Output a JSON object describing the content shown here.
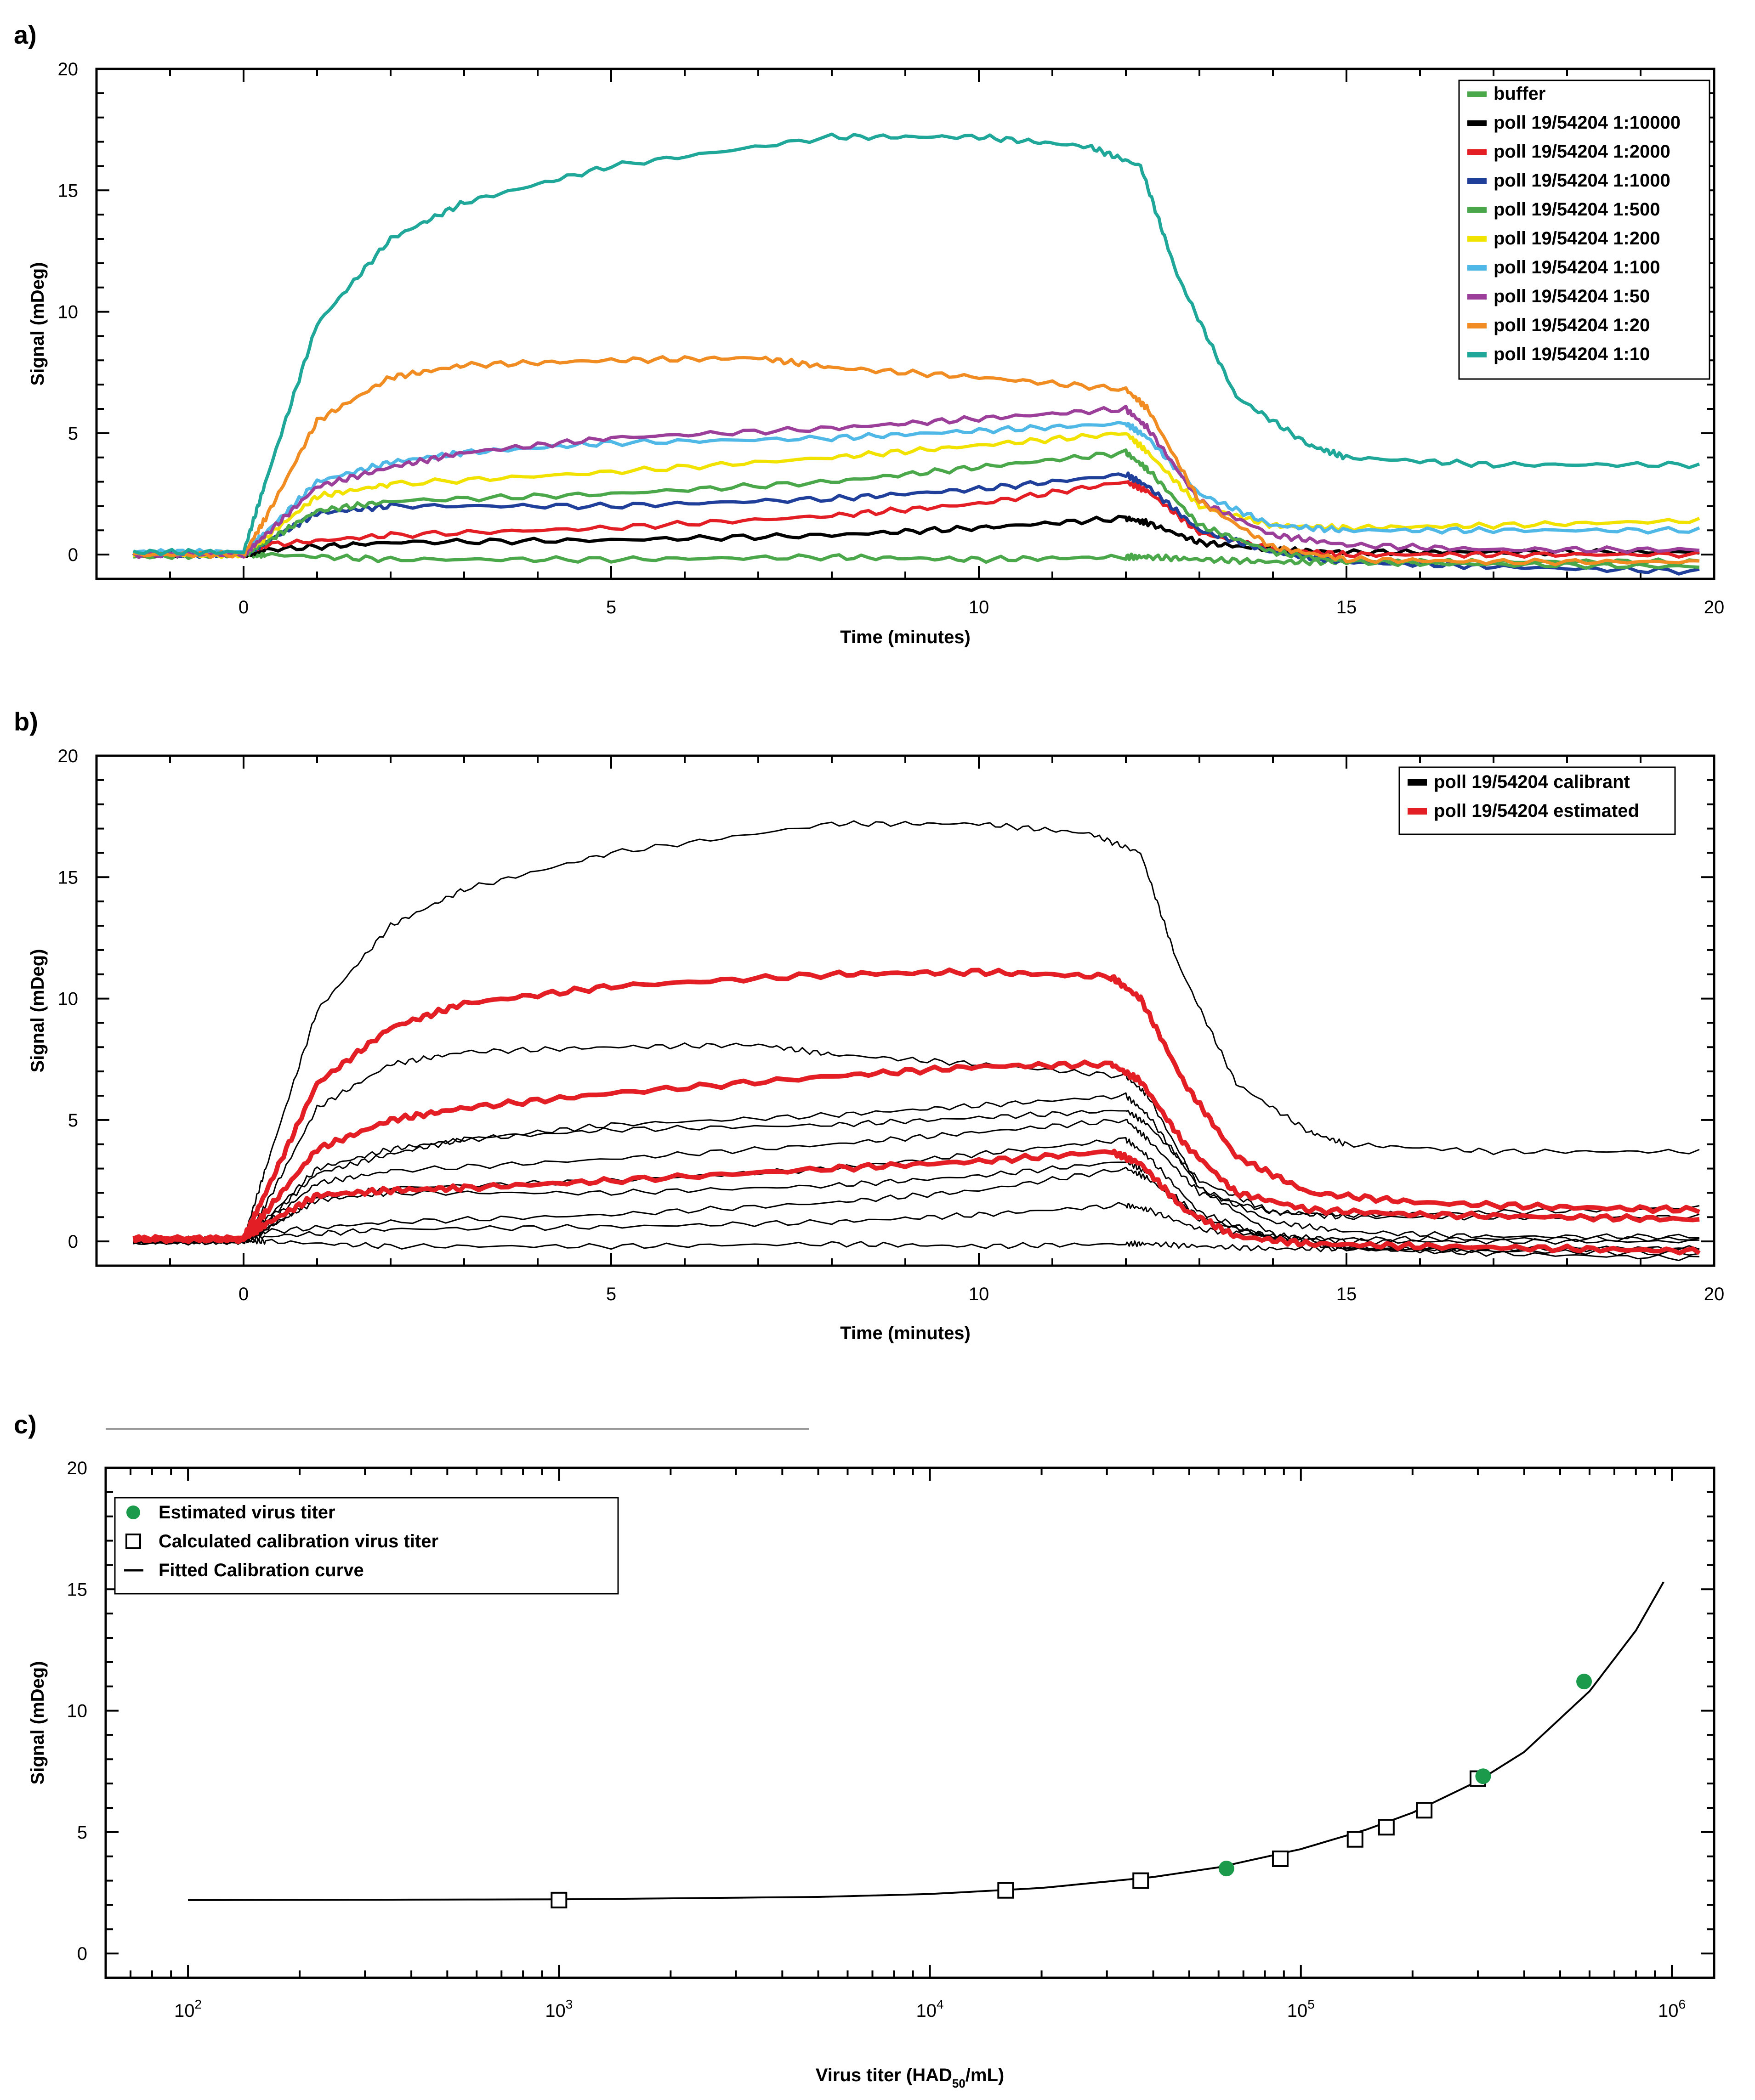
{
  "panels": [
    {
      "label": "a)"
    },
    {
      "label": "b)"
    },
    {
      "label": "c)"
    }
  ],
  "chart_data": [
    {
      "type": "line",
      "panel": "a)",
      "xlabel": "Time (minutes)",
      "ylabel": "Signal (mDeg)",
      "xlim": [
        -2,
        20
      ],
      "ylim": [
        -1,
        20
      ],
      "xticks": [
        0,
        5,
        10,
        15,
        20
      ],
      "yticks": [
        0,
        5,
        10,
        15,
        20
      ],
      "legend_position": "top-right",
      "series": [
        {
          "name": "buffer",
          "color": "#4aa84a",
          "x": [
            -1.5,
            0,
            0.3,
            2,
            5,
            8,
            10,
            12,
            12.3,
            13,
            14,
            15,
            17,
            19.8
          ],
          "y": [
            -0.1,
            0,
            0,
            -0.2,
            -0.2,
            -0.1,
            -0.2,
            -0.1,
            -0.1,
            -0.2,
            -0.3,
            -0.3,
            -0.3,
            -0.3
          ]
        },
        {
          "name": "poll 19/54204 1:10000",
          "color": "#000000",
          "x": [
            -1.5,
            0,
            0.3,
            2,
            5,
            8,
            10,
            12,
            12.3,
            13,
            14,
            15,
            17,
            19.8
          ],
          "y": [
            0,
            0,
            0.2,
            0.5,
            0.6,
            0.8,
            1.1,
            1.5,
            1.3,
            0.5,
            0.2,
            0.1,
            0.1,
            0.1
          ]
        },
        {
          "name": "poll 19/54204 1:2000",
          "color": "#e31e24",
          "x": [
            -1.5,
            0,
            0.3,
            2,
            5,
            8,
            10,
            12,
            12.3,
            13,
            14,
            15,
            17,
            19.8
          ],
          "y": [
            0,
            0,
            0.4,
            0.8,
            1.1,
            1.6,
            2.1,
            3.0,
            2.6,
            0.9,
            0.2,
            0,
            0,
            0
          ]
        },
        {
          "name": "poll 19/54204 1:1000",
          "color": "#1f3f9a",
          "x": [
            -1.5,
            0,
            0.3,
            1,
            2,
            5,
            8,
            10,
            12,
            12.3,
            13,
            14,
            15,
            17,
            19.8
          ],
          "y": [
            0,
            0,
            0.5,
            1.7,
            2.0,
            2.0,
            2.3,
            2.7,
            3.3,
            2.8,
            1.0,
            0.1,
            -0.3,
            -0.5,
            -0.7
          ]
        },
        {
          "name": "poll 19/54204 1:500",
          "color": "#4aa84a",
          "x": [
            -1.5,
            0,
            0.3,
            1,
            2,
            5,
            8,
            10,
            12,
            12.3,
            13,
            14,
            15,
            17,
            19.8
          ],
          "y": [
            0,
            0,
            0.5,
            1.8,
            2.2,
            2.5,
            3.0,
            3.6,
            4.2,
            3.5,
            1.2,
            0.1,
            -0.3,
            -0.4,
            -0.5
          ]
        },
        {
          "name": "poll 19/54204 1:200",
          "color": "#f2e200",
          "x": [
            -1.5,
            0,
            0.3,
            1,
            2,
            5,
            8,
            10,
            12,
            12.3,
            13,
            14,
            15,
            17,
            19.8
          ],
          "y": [
            0,
            0,
            0.7,
            2.4,
            2.9,
            3.4,
            4.0,
            4.5,
            5.0,
            4.2,
            2.0,
            1.2,
            1.1,
            1.2,
            1.4
          ]
        },
        {
          "name": "poll 19/54204 1:100",
          "color": "#4fb8e6",
          "x": [
            -1.5,
            0,
            0.3,
            1,
            2,
            3,
            5,
            8,
            10,
            12,
            12.3,
            13,
            14,
            15,
            17,
            19.8
          ],
          "y": [
            0.1,
            0.1,
            0.9,
            3.0,
            3.8,
            4.2,
            4.6,
            4.8,
            5.1,
            5.4,
            4.8,
            2.5,
            1.2,
            1.0,
            1.0,
            1.0
          ]
        },
        {
          "name": "poll 19/54204 1:50",
          "color": "#9b3f9b",
          "x": [
            -1.5,
            0,
            0.3,
            1,
            2,
            3,
            5,
            8,
            10,
            12,
            12.3,
            13,
            14,
            15,
            17,
            19.8
          ],
          "y": [
            0,
            0,
            0.8,
            2.8,
            3.6,
            4.2,
            4.8,
            5.2,
            5.6,
            6.0,
            5.2,
            2.2,
            0.8,
            0.4,
            0.2,
            0.2
          ]
        },
        {
          "name": "poll 19/54204 1:20",
          "color": "#f08c21",
          "x": [
            -1.5,
            0,
            0.3,
            1,
            2,
            3,
            5,
            7,
            8,
            10,
            12,
            12.3,
            13,
            14,
            15,
            17,
            19.8
          ],
          "y": [
            0,
            0,
            1.5,
            5.5,
            7.3,
            7.8,
            8.0,
            8.1,
            7.7,
            7.3,
            6.8,
            6.0,
            2.2,
            0.3,
            -0.2,
            -0.3,
            -0.3
          ]
        },
        {
          "name": "poll 19/54204 1:10",
          "color": "#1fa89a",
          "x": [
            -1.5,
            0,
            0.3,
            1,
            2,
            3,
            5,
            8,
            10,
            11.5,
            12.2,
            12.7,
            13.5,
            14.5,
            15,
            17,
            19.8
          ],
          "y": [
            0.1,
            0.1,
            3.0,
            9.5,
            13.0,
            14.5,
            16.0,
            17.2,
            17.2,
            16.8,
            16.0,
            11.5,
            6.5,
            4.5,
            4.0,
            3.7,
            3.7
          ]
        }
      ]
    },
    {
      "type": "line",
      "panel": "b)",
      "xlabel": "Time (minutes)",
      "ylabel": "Signal (mDeg)",
      "xlim": [
        -2,
        20
      ],
      "ylim": [
        -1,
        20
      ],
      "xticks": [
        0,
        5,
        10,
        15,
        20
      ],
      "yticks": [
        0,
        5,
        10,
        15,
        20
      ],
      "legend_position": "top-right",
      "legend": [
        {
          "name": "poll 19/54204 calibrant",
          "color": "#000000"
        },
        {
          "name": "poll 19/54204 estimated",
          "color": "#e31e24"
        }
      ],
      "series": [
        {
          "group": "calibrant",
          "color": "#000000",
          "x": [
            -1.5,
            0,
            0.3,
            2,
            5,
            8,
            10,
            12,
            12.3,
            13,
            14,
            15,
            17,
            19.8
          ],
          "y": [
            -0.1,
            0,
            0,
            -0.2,
            -0.2,
            -0.1,
            -0.2,
            -0.1,
            -0.1,
            -0.2,
            -0.3,
            -0.3,
            -0.3,
            -0.3
          ]
        },
        {
          "group": "calibrant",
          "color": "#000000",
          "x": [
            -1.5,
            0,
            0.3,
            2,
            5,
            8,
            10,
            12,
            12.3,
            13,
            14,
            15,
            17,
            19.8
          ],
          "y": [
            0,
            0,
            0.2,
            0.5,
            0.6,
            0.8,
            1.1,
            1.5,
            1.3,
            0.5,
            0.2,
            0.1,
            0.1,
            0.1
          ]
        },
        {
          "group": "calibrant",
          "color": "#000000",
          "x": [
            -1.5,
            0,
            0.3,
            2,
            5,
            8,
            10,
            12,
            12.3,
            13,
            14,
            15,
            17,
            19.8
          ],
          "y": [
            0,
            0,
            0.4,
            0.8,
            1.1,
            1.6,
            2.1,
            3.0,
            2.6,
            0.9,
            0.2,
            0,
            0,
            0
          ]
        },
        {
          "group": "calibrant",
          "color": "#000000",
          "x": [
            -1.5,
            0,
            0.3,
            1,
            2,
            5,
            8,
            10,
            12,
            12.3,
            13,
            14,
            15,
            17,
            19.8
          ],
          "y": [
            0,
            0,
            0.5,
            1.7,
            2.0,
            2.0,
            2.3,
            2.7,
            3.3,
            2.8,
            1.0,
            0.1,
            -0.3,
            -0.5,
            -0.7
          ]
        },
        {
          "group": "calibrant",
          "color": "#000000",
          "x": [
            -1.5,
            0,
            0.3,
            1,
            2,
            5,
            8,
            10,
            12,
            12.3,
            13,
            14,
            15,
            17,
            19.8
          ],
          "y": [
            0,
            0,
            0.5,
            1.8,
            2.2,
            2.5,
            3.0,
            3.6,
            4.2,
            3.5,
            1.2,
            0.1,
            -0.3,
            -0.4,
            -0.5
          ]
        },
        {
          "group": "calibrant",
          "color": "#000000",
          "x": [
            -1.5,
            0,
            0.3,
            1,
            2,
            5,
            8,
            10,
            12,
            12.3,
            13,
            14,
            15,
            17,
            19.8
          ],
          "y": [
            0,
            0,
            0.7,
            2.4,
            2.9,
            3.4,
            4.0,
            4.5,
            5.0,
            4.2,
            2.0,
            1.2,
            1.1,
            1.2,
            1.4
          ]
        },
        {
          "group": "calibrant",
          "color": "#000000",
          "x": [
            -1.5,
            0,
            0.3,
            1,
            2,
            3,
            5,
            8,
            10,
            12,
            12.3,
            13,
            14,
            15,
            17,
            19.8
          ],
          "y": [
            0.1,
            0.1,
            0.9,
            3.0,
            3.8,
            4.2,
            4.6,
            4.8,
            5.1,
            5.4,
            4.8,
            2.5,
            1.2,
            1.0,
            1.0,
            1.0
          ]
        },
        {
          "group": "calibrant",
          "color": "#000000",
          "x": [
            -1.5,
            0,
            0.3,
            1,
            2,
            3,
            5,
            8,
            10,
            12,
            12.3,
            13,
            14,
            15,
            17,
            19.8
          ],
          "y": [
            0,
            0,
            0.8,
            2.8,
            3.6,
            4.2,
            4.8,
            5.2,
            5.6,
            6.0,
            5.2,
            2.2,
            0.8,
            0.4,
            0.2,
            0.2
          ]
        },
        {
          "group": "calibrant",
          "color": "#000000",
          "x": [
            -1.5,
            0,
            0.3,
            1,
            2,
            3,
            5,
            7,
            8,
            10,
            12,
            12.3,
            13,
            14,
            15,
            17,
            19.8
          ],
          "y": [
            0,
            0,
            1.5,
            5.5,
            7.3,
            7.8,
            8.0,
            8.1,
            7.7,
            7.3,
            6.8,
            6.0,
            2.2,
            0.3,
            -0.2,
            -0.3,
            -0.3
          ]
        },
        {
          "group": "calibrant",
          "color": "#000000",
          "x": [
            -1.5,
            0,
            0.3,
            1,
            2,
            3,
            5,
            8,
            10,
            11.5,
            12.2,
            12.7,
            13.5,
            14.5,
            15,
            17,
            19.8
          ],
          "y": [
            0.1,
            0.1,
            3.0,
            9.5,
            13.0,
            14.5,
            16.0,
            17.2,
            17.2,
            16.8,
            16.0,
            11.5,
            6.5,
            4.5,
            4.0,
            3.7,
            3.7
          ]
        },
        {
          "group": "estimated",
          "color": "#e31e24",
          "x": [
            -1.5,
            0,
            0.3,
            1,
            2,
            3,
            5,
            8,
            10,
            11.8,
            12.2,
            12.8,
            13.5,
            14.5,
            16,
            18,
            19.8
          ],
          "y": [
            0.1,
            0.1,
            2.0,
            6.5,
            8.8,
            9.8,
            10.5,
            11.0,
            11.1,
            10.9,
            10.0,
            6.5,
            3.5,
            2.0,
            1.6,
            1.4,
            1.3
          ]
        },
        {
          "group": "estimated",
          "color": "#e31e24",
          "x": [
            -1.5,
            0,
            0.3,
            1,
            2,
            3,
            5,
            8,
            10,
            11.8,
            12.2,
            12.8,
            13.5,
            14.5,
            16,
            18,
            19.8
          ],
          "y": [
            0.1,
            0.1,
            1.2,
            3.8,
            5.0,
            5.5,
            6.1,
            6.8,
            7.2,
            7.3,
            6.6,
            4.0,
            2.0,
            1.3,
            1.1,
            1.0,
            0.9
          ]
        },
        {
          "group": "estimated",
          "color": "#e31e24",
          "x": [
            -1.5,
            0,
            0.3,
            1,
            2,
            3,
            5,
            8,
            10,
            11.8,
            12.2,
            12.8,
            13.5,
            14.5,
            16,
            18,
            19.8
          ],
          "y": [
            0.1,
            0.1,
            0.7,
            1.9,
            2.1,
            2.2,
            2.5,
            3.0,
            3.3,
            3.7,
            3.2,
            1.3,
            0.2,
            -0.1,
            -0.2,
            -0.3,
            -0.4
          ]
        }
      ]
    },
    {
      "type": "scatter",
      "panel": "c)",
      "xlabel": "Virus titer (HAD",
      "xlabel_sub": "50",
      "xlabel_end": "/mL)",
      "ylabel": "Signal (mDeg)",
      "xscale": "log",
      "xlim": [
        60,
        1300000
      ],
      "ylim": [
        -1,
        20
      ],
      "xticks": [
        100,
        1000,
        10000,
        100000,
        1000000
      ],
      "xtick_base": "10",
      "xtick_exponents": [
        "2",
        "3",
        "4",
        "5",
        "6"
      ],
      "yticks": [
        0,
        5,
        10,
        15,
        20
      ],
      "legend_position": "top-left",
      "legend": [
        {
          "name": "Estimated virus titer",
          "marker": "filled-circle",
          "color": "#1a9a4a"
        },
        {
          "name": "Calculated calibration virus titer",
          "marker": "open-square",
          "color": "#000000"
        },
        {
          "name": "Fitted Calibration curve",
          "marker": "line",
          "color": "#000000"
        }
      ],
      "calibration_points": {
        "x": [
          1000,
          16000,
          37000,
          88000,
          140000,
          170000,
          215000,
          300000
        ],
        "y": [
          2.2,
          2.6,
          3.0,
          3.9,
          4.7,
          5.2,
          5.9,
          7.2
        ]
      },
      "estimated_points": {
        "x": [
          63000,
          310000,
          580000
        ],
        "y": [
          3.5,
          7.3,
          11.2
        ]
      },
      "fitted_curve": {
        "x": [
          100,
          1000,
          5000,
          10000,
          20000,
          40000,
          60000,
          100000,
          150000,
          200000,
          300000,
          400000,
          600000,
          800000,
          950000
        ],
        "y": [
          2.2,
          2.23,
          2.33,
          2.45,
          2.7,
          3.15,
          3.55,
          4.3,
          5.1,
          5.8,
          7.1,
          8.3,
          10.8,
          13.3,
          15.3
        ]
      }
    }
  ]
}
